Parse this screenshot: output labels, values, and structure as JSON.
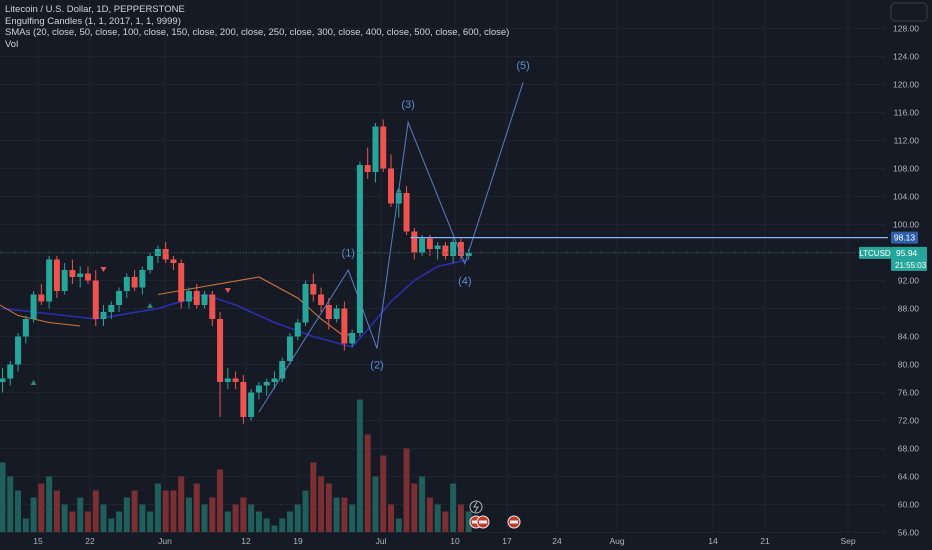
{
  "legend": {
    "title": "Litecoin / U.S. Dollar, 1D, PEPPERSTONE",
    "engulfing": "Engulfing Candles (1, 1, 2017, 1, 1, 9999)",
    "smas": "SMAs (20, close, 50, close, 100, close, 150, close, 200, close, 250, close, 300, close, 400, close, 500, close, 600, close)",
    "vol": "Vol"
  },
  "price_scale": {
    "labels": [
      "128.00",
      "124.00",
      "120.00",
      "116.00",
      "112.00",
      "108.00",
      "104.00",
      "100.00",
      "96.00",
      "92.00",
      "88.00",
      "84.00",
      "80.00",
      "76.00",
      "72.00",
      "68.00",
      "64.00",
      "60.00",
      "56.00"
    ],
    "ymin": 54.5,
    "ymax": 129.5
  },
  "time_scale": {
    "labels": [
      "15",
      "22",
      "Jun",
      "12",
      "19",
      "Jul",
      "10",
      "17",
      "24",
      "Aug",
      "14",
      "21",
      "Sep"
    ]
  },
  "tags": {
    "symbol": "LTCUSD",
    "price": "95.94",
    "countdown": "21:55:03",
    "level": "98.13"
  },
  "waves": [
    "(1)",
    "(2)",
    "(3)",
    "(4)",
    "(5)"
  ],
  "colors": {
    "background": "#161a25",
    "up": "#26a69a",
    "down": "#ef5350",
    "volume_up": "#1f5e5a",
    "volume_down": "#7a2f33",
    "wave": "#5a7fbf",
    "level_line": "#7fb6ff",
    "sma_fast": "#d0743c",
    "sma_slow": "#2a2fb0"
  },
  "chart_data": {
    "type": "candlestick",
    "title": "Litecoin / U.S. Dollar, 1D, PEPPERSTONE",
    "ylim": [
      54.5,
      129.5
    ],
    "candles": [
      [
        77.5,
        79.5,
        76.0,
        78.0
      ],
      [
        78.0,
        80.5,
        77.0,
        80.0
      ],
      [
        80.0,
        84.5,
        79.0,
        84.0
      ],
      [
        84.0,
        87.0,
        83.0,
        86.5
      ],
      [
        86.5,
        90.5,
        86.0,
        90.0
      ],
      [
        90.0,
        91.5,
        88.5,
        89.0
      ],
      [
        89.0,
        95.5,
        88.0,
        95.0
      ],
      [
        95.0,
        95.5,
        89.5,
        90.5
      ],
      [
        90.5,
        94.5,
        90.0,
        93.5
      ],
      [
        93.5,
        95.0,
        91.5,
        92.5
      ],
      [
        92.5,
        94.0,
        91.0,
        93.0
      ],
      [
        93.0,
        94.0,
        91.5,
        92.0
      ],
      [
        92.0,
        93.5,
        85.5,
        86.5
      ],
      [
        86.5,
        88.5,
        85.5,
        87.5
      ],
      [
        87.5,
        89.0,
        86.5,
        88.5
      ],
      [
        88.5,
        91.0,
        87.5,
        90.5
      ],
      [
        90.5,
        93.0,
        89.5,
        92.5
      ],
      [
        92.5,
        93.5,
        90.5,
        91.0
      ],
      [
        91.0,
        94.0,
        90.0,
        93.5
      ],
      [
        93.5,
        96.0,
        93.0,
        95.5
      ],
      [
        95.5,
        97.0,
        94.5,
        96.5
      ],
      [
        96.5,
        97.5,
        94.5,
        95.0
      ],
      [
        95.0,
        95.5,
        93.5,
        94.5
      ],
      [
        94.5,
        95.0,
        88.0,
        89.0
      ],
      [
        89.0,
        91.0,
        88.0,
        90.5
      ],
      [
        90.5,
        91.5,
        88.0,
        88.5
      ],
      [
        88.5,
        90.5,
        88.0,
        90.0
      ],
      [
        90.0,
        90.5,
        85.5,
        86.5
      ],
      [
        86.5,
        87.5,
        72.5,
        77.5
      ],
      [
        77.5,
        79.5,
        76.5,
        78.0
      ],
      [
        78.0,
        79.0,
        76.5,
        77.5
      ],
      [
        77.5,
        78.5,
        71.5,
        72.5
      ],
      [
        72.5,
        76.5,
        72.0,
        76.0
      ],
      [
        76.0,
        77.5,
        75.0,
        77.0
      ],
      [
        77.0,
        78.0,
        75.5,
        77.5
      ],
      [
        77.5,
        79.0,
        76.5,
        78.0
      ],
      [
        78.0,
        81.0,
        77.5,
        80.5
      ],
      [
        80.5,
        84.5,
        80.0,
        84.0
      ],
      [
        84.0,
        86.5,
        83.5,
        86.0
      ],
      [
        86.0,
        92.0,
        85.5,
        91.5
      ],
      [
        91.5,
        93.0,
        89.0,
        90.0
      ],
      [
        90.0,
        91.0,
        87.5,
        88.5
      ],
      [
        88.5,
        89.5,
        85.0,
        86.5
      ],
      [
        86.5,
        88.5,
        86.0,
        88.0
      ],
      [
        88.0,
        89.0,
        82.0,
        83.0
      ],
      [
        83.0,
        85.0,
        82.5,
        84.5
      ],
      [
        84.5,
        109.0,
        84.0,
        108.5
      ],
      [
        108.5,
        111.0,
        106.5,
        107.5
      ],
      [
        107.5,
        114.5,
        106.0,
        114.0
      ],
      [
        114.0,
        115.0,
        107.5,
        108.0
      ],
      [
        108.0,
        110.0,
        102.5,
        103.0
      ],
      [
        103.0,
        105.0,
        101.0,
        104.5
      ],
      [
        104.5,
        105.5,
        98.5,
        99.0
      ],
      [
        99.0,
        99.5,
        95.0,
        96.0
      ],
      [
        96.0,
        98.5,
        95.5,
        98.0
      ],
      [
        98.0,
        98.5,
        95.5,
        96.5
      ],
      [
        96.5,
        97.5,
        95.0,
        97.0
      ],
      [
        97.0,
        97.5,
        95.0,
        95.5
      ],
      [
        95.5,
        98.0,
        94.5,
        97.5
      ],
      [
        97.5,
        98.0,
        95.0,
        95.5
      ],
      [
        95.5,
        96.5,
        95.0,
        95.94
      ]
    ],
    "volume": [
      66,
      64,
      62,
      58,
      61,
      63,
      64,
      62,
      60,
      59,
      61,
      59,
      62,
      60,
      58,
      59,
      61,
      62,
      60,
      59,
      63,
      62,
      62,
      64,
      61,
      63,
      60,
      61,
      65,
      59,
      60,
      61,
      60,
      59,
      58,
      57,
      58,
      59,
      60,
      62,
      66,
      64,
      63,
      61,
      61,
      60,
      75,
      70,
      64,
      67,
      60,
      58,
      68,
      63,
      64,
      61,
      60,
      59,
      63,
      60,
      59
    ],
    "sma_fast": [
      [
        20,
        90
      ],
      [
        33,
        92.5
      ],
      [
        38,
        89.5
      ],
      [
        41,
        86.5
      ],
      [
        44,
        84
      ],
      [
        45,
        84.5
      ]
    ],
    "sma_slow": [
      [
        0,
        88
      ],
      [
        12,
        86.5
      ],
      [
        20,
        88
      ],
      [
        26,
        90
      ],
      [
        30,
        88.5
      ],
      [
        35,
        86
      ],
      [
        40,
        84
      ],
      [
        45,
        82.5
      ],
      [
        47,
        85
      ],
      [
        50,
        89
      ],
      [
        53,
        92
      ],
      [
        56,
        94
      ],
      [
        60,
        95
      ]
    ],
    "wave_path": [
      [
        33,
        73.2
      ],
      [
        44.5,
        93.5
      ],
      [
        48.2,
        82.3
      ],
      [
        52.2,
        114.6
      ],
      [
        59.5,
        94.4
      ],
      [
        67,
        120.3
      ]
    ],
    "level": 98.13
  }
}
